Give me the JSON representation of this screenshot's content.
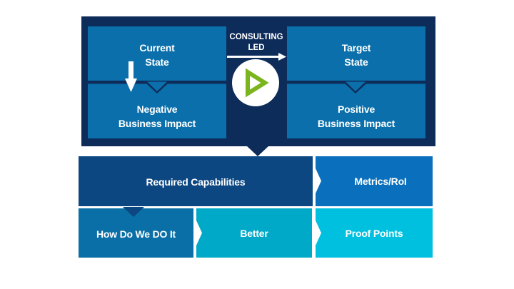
{
  "top": {
    "current_state": "Current\nState",
    "negative_impact": "Negative\nBusiness Impact",
    "target_state": "Target\nState",
    "positive_impact": "Positive\nBusiness Impact",
    "consulting": "CONSULTING\nLED",
    "play_icon": "play-triangle"
  },
  "bottom": {
    "required_capabilities": "Required Capabilities",
    "metrics": "Metrics/RoI",
    "how_do": "How Do We DO It",
    "better": "Better",
    "proof_points": "Proof Points"
  },
  "colors": {
    "frame": "#0e2c5a",
    "top_boxes": "#0a6faa",
    "required_capabilities": "#0d4781",
    "metrics": "#0a6fbc",
    "how_do": "#0a6fa6",
    "better": "#00a9c8",
    "proof_points": "#00c0e0",
    "play_icon": "#7ab51d"
  }
}
